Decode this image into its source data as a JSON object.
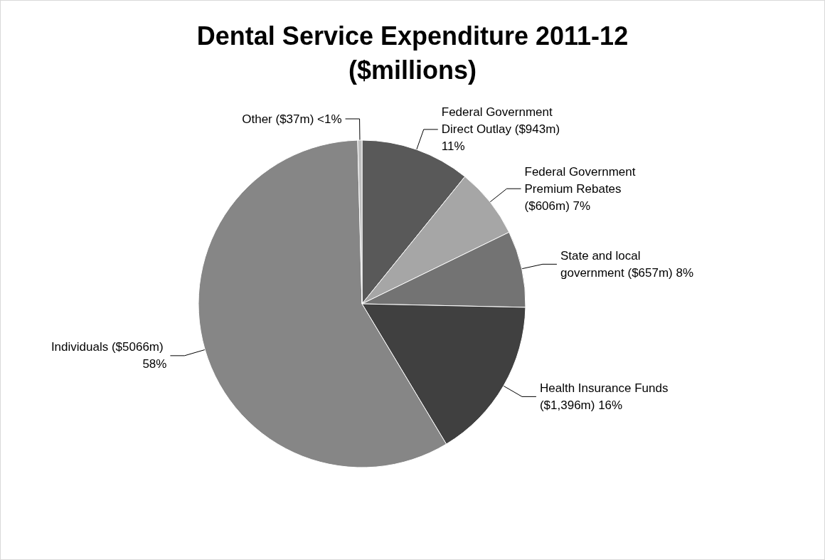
{
  "chart_data": {
    "type": "pie",
    "title": "Dental Service Expenditure 2011-12\n($millions)",
    "categories": [
      "Federal Government Direct Outlay ($943m)",
      "Federal Government Premium Rebates ($606m)",
      "State and local government ($657m)",
      "Health Insurance Funds ($1,396m)",
      "Individuals ($5066m)",
      "Other ($37m)"
    ],
    "values": [
      10.83,
      6.96,
      7.55,
      16.04,
      58.2,
      0.42
    ],
    "value_labels": [
      "11%",
      "7%",
      "8%",
      "16%",
      "58%",
      "<1%"
    ],
    "colors": [
      "#595959",
      "#a6a6a6",
      "#737373",
      "#404040",
      "#868686",
      "#bfbfbf"
    ]
  }
}
